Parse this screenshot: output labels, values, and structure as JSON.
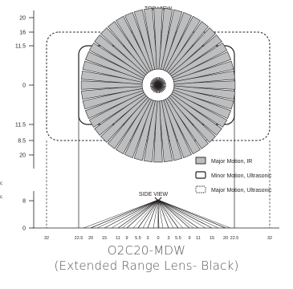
{
  "diagram": {
    "top_view_title": "TOP VIEW",
    "side_view_title": "SIDE VIEW",
    "top_view_axis_ticks": [
      "20",
      "16",
      "11.5",
      "0",
      "11.5",
      "8.5",
      "20"
    ],
    "side_view_axis_ticks": [
      "8",
      "0"
    ],
    "side_view_x_ticks": [
      "32",
      "22.5",
      "20",
      "15",
      "11",
      "9",
      "5.5",
      "3",
      "0",
      "3",
      "5.5",
      "9",
      "11",
      "15",
      "20",
      "22.5",
      "32"
    ],
    "edge_fragments": [
      "c",
      "c"
    ],
    "legend": [
      {
        "label": "Major Motion, IR",
        "swatch": "filled-grey"
      },
      {
        "label": "Minor Motion, Ultrasonic",
        "swatch": "solid-outline"
      },
      {
        "label": "Major Motion, Ultrasonic",
        "swatch": "dotted-outline"
      }
    ],
    "colors": {
      "ink": "#231f20",
      "ray_fill": "#bcbec0",
      "caption": "#555555"
    }
  },
  "caption": {
    "model": "O2C20-MDW",
    "lens": "(Extended Range Lens- Black)"
  }
}
